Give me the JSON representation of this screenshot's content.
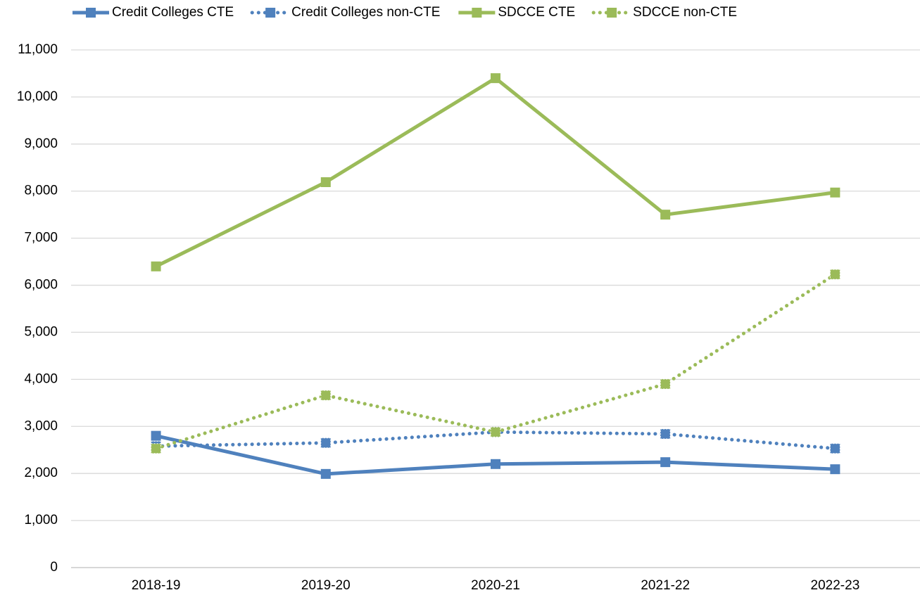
{
  "chart_data": {
    "type": "line",
    "categories": [
      "2018-19",
      "2019-20",
      "2020-21",
      "2021-22",
      "2022-23"
    ],
    "series": [
      {
        "name": "Credit Colleges CTE",
        "color": "#4f81bd",
        "line_style": "solid",
        "values": [
          2800,
          1990,
          2200,
          2240,
          2090
        ]
      },
      {
        "name": "Credit Colleges non-CTE",
        "color": "#4f81bd",
        "line_style": "dotted",
        "values": [
          2580,
          2650,
          2880,
          2840,
          2530
        ]
      },
      {
        "name": "SDCCE CTE",
        "color": "#9bbb59",
        "line_style": "solid",
        "values": [
          6400,
          8190,
          10400,
          7500,
          7970
        ]
      },
      {
        "name": "SDCCE non-CTE",
        "color": "#9bbb59",
        "line_style": "dotted",
        "values": [
          2530,
          3660,
          2880,
          3900,
          6230
        ]
      }
    ],
    "ylim": [
      0,
      11000
    ],
    "yticks": [
      0,
      {
        "value": 1000,
        "label": "1,000"
      },
      {
        "value": 2000,
        "label": "2,000"
      },
      {
        "value": 3000,
        "label": "3,000"
      },
      {
        "value": 4000,
        "label": "4,000"
      },
      {
        "value": 5000,
        "label": "5,000"
      },
      {
        "value": 6000,
        "label": "6,000"
      },
      {
        "value": 7000,
        "label": "7,000"
      },
      {
        "value": 8000,
        "label": "8,000"
      },
      {
        "value": 9000,
        "label": "9,000"
      },
      {
        "value": 10000,
        "label": "10,000"
      },
      {
        "value": 11000,
        "label": "11,000"
      }
    ],
    "grid": true,
    "legend": "top"
  }
}
